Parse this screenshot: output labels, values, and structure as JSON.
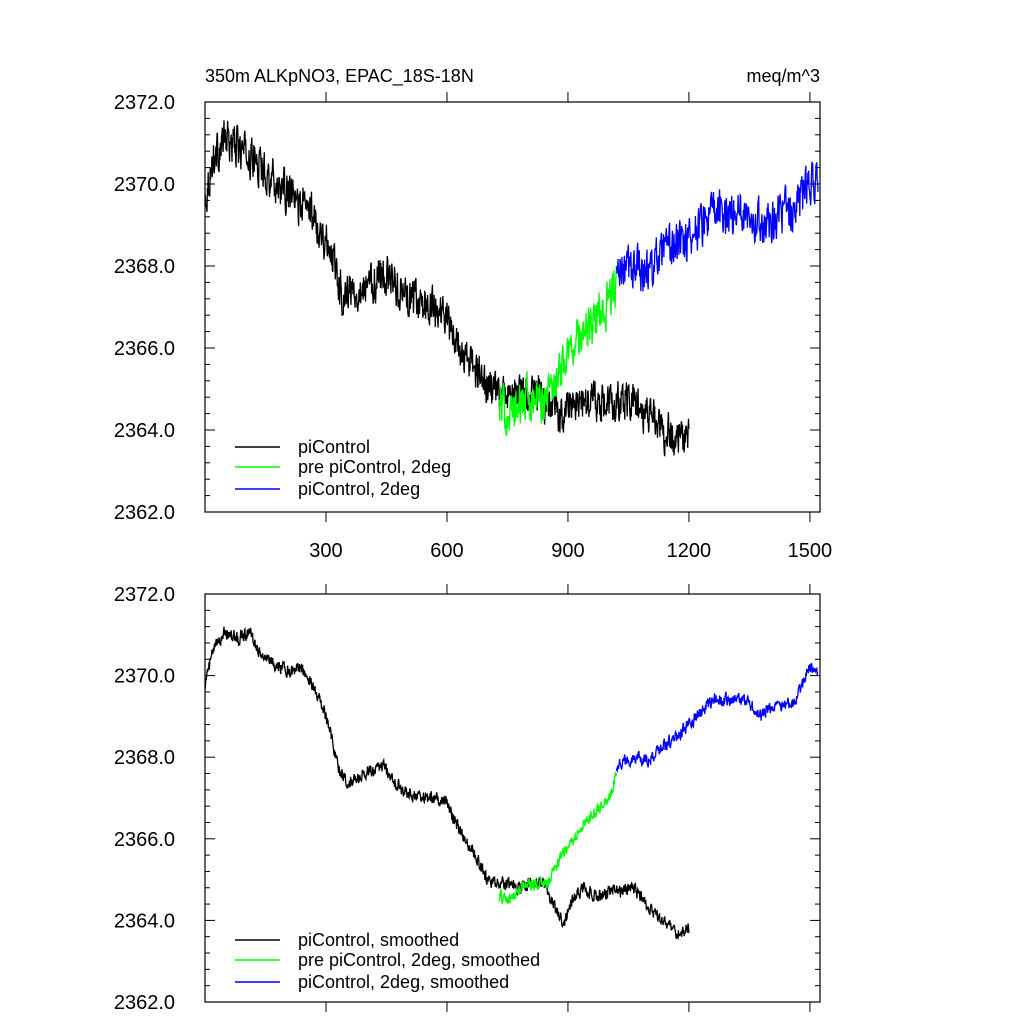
{
  "colors": {
    "piControl": "#000000",
    "pre_piControl_2deg": "#00ff00",
    "piControl_2deg": "#0000ff"
  },
  "chart_data": [
    {
      "type": "line",
      "title": "350m ALKpNO3, EPAC_18S-18N",
      "units": "meq/m^3",
      "xlabel": "",
      "ylabel": "",
      "xlim": [
        0,
        1525
      ],
      "ylim": [
        2362.0,
        2372.0
      ],
      "yticks": [
        "2362.0",
        "2364.0",
        "2366.0",
        "2368.0",
        "2370.0",
        "2372.0"
      ],
      "xticks": [
        "300",
        "600",
        "900",
        "1200",
        "1500"
      ],
      "show_xtick_labels": true,
      "legend_position": "bottom-left",
      "series": [
        {
          "name": "piControl",
          "color": "#000000",
          "noise": 0.55,
          "points": [
            [
              0,
              2369.6
            ],
            [
              20,
              2370.6
            ],
            [
              50,
              2371.1
            ],
            [
              80,
              2370.9
            ],
            [
              120,
              2370.6
            ],
            [
              170,
              2370.1
            ],
            [
              230,
              2369.5
            ],
            [
              260,
              2369.4
            ],
            [
              290,
              2368.8
            ],
            [
              320,
              2368.2
            ],
            [
              340,
              2367.3
            ],
            [
              370,
              2367.4
            ],
            [
              400,
              2367.5
            ],
            [
              440,
              2367.8
            ],
            [
              470,
              2367.6
            ],
            [
              500,
              2367.2
            ],
            [
              530,
              2367.1
            ],
            [
              560,
              2367.0
            ],
            [
              590,
              2366.9
            ],
            [
              610,
              2366.4
            ],
            [
              640,
              2365.8
            ],
            [
              670,
              2365.5
            ],
            [
              700,
              2365.0
            ],
            [
              740,
              2364.8
            ],
            [
              780,
              2364.9
            ],
            [
              820,
              2364.9
            ],
            [
              850,
              2364.6
            ],
            [
              880,
              2364.3
            ],
            [
              900,
              2364.6
            ],
            [
              930,
              2364.6
            ],
            [
              960,
              2364.7
            ],
            [
              990,
              2364.6
            ],
            [
              1020,
              2364.7
            ],
            [
              1060,
              2364.7
            ],
            [
              1100,
              2364.3
            ],
            [
              1140,
              2364.0
            ],
            [
              1170,
              2363.8
            ],
            [
              1200,
              2363.8
            ]
          ]
        },
        {
          "name": "pre piControl, 2deg",
          "color": "#00ff00",
          "noise": 0.6,
          "points": [
            [
              730,
              2364.6
            ],
            [
              760,
              2364.4
            ],
            [
              800,
              2364.8
            ],
            [
              840,
              2364.7
            ],
            [
              880,
              2365.5
            ],
            [
              920,
              2366.2
            ],
            [
              960,
              2366.6
            ],
            [
              1000,
              2367.1
            ],
            [
              1020,
              2367.6
            ]
          ]
        },
        {
          "name": "piControl, 2deg",
          "color": "#0000ff",
          "noise": 0.6,
          "points": [
            [
              1020,
              2367.8
            ],
            [
              1060,
              2368.0
            ],
            [
              1100,
              2367.9
            ],
            [
              1140,
              2368.3
            ],
            [
              1180,
              2368.6
            ],
            [
              1220,
              2368.9
            ],
            [
              1260,
              2369.3
            ],
            [
              1300,
              2369.3
            ],
            [
              1340,
              2369.4
            ],
            [
              1380,
              2369.0
            ],
            [
              1420,
              2369.3
            ],
            [
              1460,
              2369.3
            ],
            [
              1500,
              2370.1
            ],
            [
              1520,
              2370.0
            ]
          ]
        }
      ]
    },
    {
      "type": "line",
      "title": "",
      "units": "",
      "xlabel": "",
      "ylabel": "",
      "xlim": [
        0,
        1525
      ],
      "ylim": [
        2362.0,
        2372.0
      ],
      "yticks": [
        "2362.0",
        "2364.0",
        "2366.0",
        "2368.0",
        "2370.0",
        "2372.0"
      ],
      "xticks": [
        "300",
        "600",
        "900",
        "1200",
        "1500"
      ],
      "show_xtick_labels": false,
      "legend_position": "bottom-left",
      "series": [
        {
          "name": "piControl, smoothed",
          "color": "#000000",
          "noise": 0.18,
          "points": [
            [
              0,
              2369.8
            ],
            [
              20,
              2370.6
            ],
            [
              50,
              2371.1
            ],
            [
              80,
              2370.9
            ],
            [
              110,
              2371.1
            ],
            [
              140,
              2370.5
            ],
            [
              170,
              2370.3
            ],
            [
              210,
              2370.1
            ],
            [
              240,
              2370.2
            ],
            [
              260,
              2369.9
            ],
            [
              290,
              2369.3
            ],
            [
              310,
              2368.7
            ],
            [
              330,
              2367.7
            ],
            [
              350,
              2367.4
            ],
            [
              380,
              2367.5
            ],
            [
              410,
              2367.7
            ],
            [
              440,
              2367.8
            ],
            [
              470,
              2367.4
            ],
            [
              500,
              2367.1
            ],
            [
              540,
              2367.0
            ],
            [
              570,
              2367.0
            ],
            [
              600,
              2366.9
            ],
            [
              620,
              2366.4
            ],
            [
              650,
              2365.9
            ],
            [
              680,
              2365.4
            ],
            [
              700,
              2365.0
            ],
            [
              740,
              2364.9
            ],
            [
              780,
              2364.8
            ],
            [
              820,
              2365.0
            ],
            [
              840,
              2364.9
            ],
            [
              870,
              2364.3
            ],
            [
              890,
              2363.9
            ],
            [
              910,
              2364.5
            ],
            [
              940,
              2364.8
            ],
            [
              970,
              2364.6
            ],
            [
              1000,
              2364.7
            ],
            [
              1030,
              2364.7
            ],
            [
              1060,
              2364.8
            ],
            [
              1090,
              2364.5
            ],
            [
              1120,
              2364.1
            ],
            [
              1150,
              2363.9
            ],
            [
              1180,
              2363.6
            ],
            [
              1200,
              2363.8
            ]
          ]
        },
        {
          "name": "pre piControl, 2deg, smoothed",
          "color": "#00ff00",
          "noise": 0.18,
          "points": [
            [
              730,
              2364.6
            ],
            [
              760,
              2364.5
            ],
            [
              790,
              2364.9
            ],
            [
              820,
              2364.9
            ],
            [
              850,
              2364.9
            ],
            [
              880,
              2365.5
            ],
            [
              920,
              2366.1
            ],
            [
              960,
              2366.6
            ],
            [
              1000,
              2367.0
            ],
            [
              1020,
              2367.5
            ]
          ]
        },
        {
          "name": "piControl, 2deg, smoothed",
          "color": "#0000ff",
          "noise": 0.18,
          "points": [
            [
              1020,
              2367.8
            ],
            [
              1060,
              2368.0
            ],
            [
              1100,
              2367.9
            ],
            [
              1140,
              2368.3
            ],
            [
              1180,
              2368.6
            ],
            [
              1220,
              2369.0
            ],
            [
              1260,
              2369.4
            ],
            [
              1300,
              2369.4
            ],
            [
              1340,
              2369.4
            ],
            [
              1380,
              2369.0
            ],
            [
              1420,
              2369.3
            ],
            [
              1460,
              2369.3
            ],
            [
              1500,
              2370.2
            ],
            [
              1520,
              2370.0
            ]
          ]
        }
      ]
    }
  ]
}
